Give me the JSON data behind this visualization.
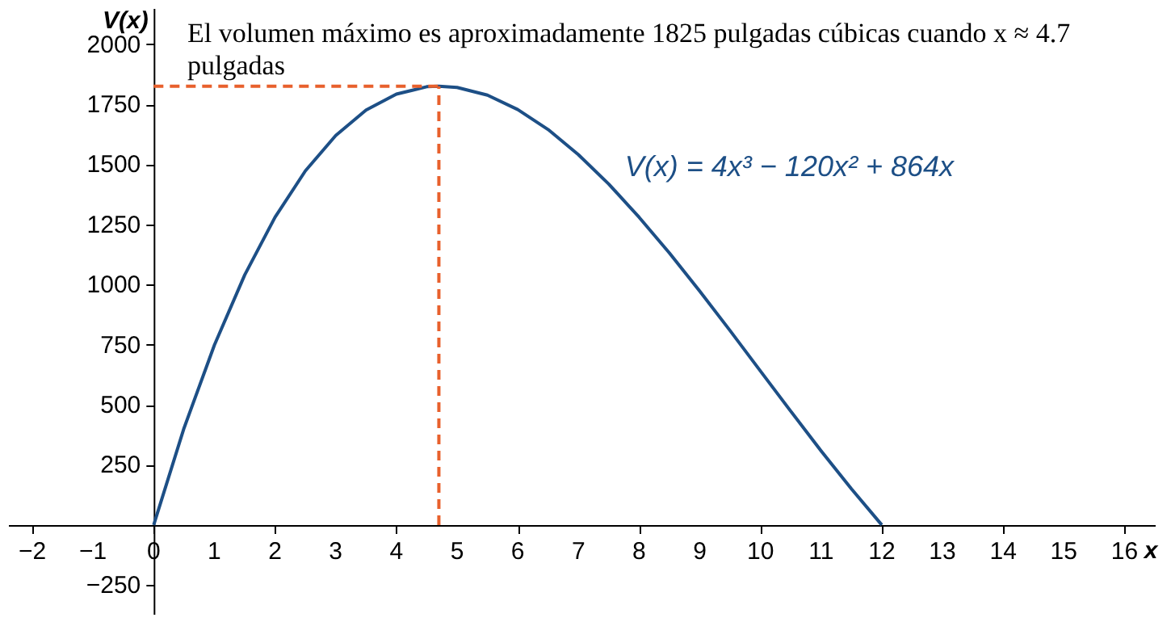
{
  "chart_data": {
    "type": "line",
    "xlabel": "x",
    "ylabel": "V(x)",
    "annotations": [
      "El volumen máximo es aproximadamente 1825 pulgadas cúbicas cuando x ≈ 4.7 pulgadas"
    ],
    "series": [
      {
        "name": "V(x) = 4x³ − 120x² + 864x",
        "color": "#1d4f86",
        "x": [
          0,
          0.5,
          1,
          1.5,
          2,
          2.5,
          3,
          3.5,
          4,
          4.5,
          4.7,
          5,
          5.5,
          6,
          6.5,
          7,
          7.5,
          8,
          8.5,
          9,
          9.5,
          10,
          10.5,
          11,
          11.5,
          12
        ],
        "values": [
          0,
          403,
          748,
          1040,
          1280,
          1473,
          1620,
          1726,
          1792,
          1823,
          1825,
          1820,
          1788,
          1728,
          1645,
          1540,
          1418,
          1280,
          1131,
          972,
          808,
          640,
          473,
          308,
          150,
          0
        ]
      }
    ],
    "xlim": [
      -2.4,
      16.5
    ],
    "ylim": [
      -370,
      2150
    ],
    "xticks": [
      {
        "value": -2,
        "label": "−2"
      },
      {
        "value": -1,
        "label": "−1"
      },
      0,
      1,
      2,
      3,
      4,
      5,
      6,
      7,
      8,
      9,
      10,
      11,
      12,
      13,
      14,
      15,
      16
    ],
    "yticks": [
      {
        "value": -250,
        "label": "−250"
      },
      250,
      500,
      750,
      1000,
      1250,
      1500,
      1750,
      2000
    ],
    "ref_lines": [
      {
        "axis": "y",
        "value": 1825,
        "color": "#e8602c",
        "line_style": "dashed"
      },
      {
        "axis": "x",
        "value": 4.7,
        "color": "#e8602c",
        "line_style": "dashed"
      }
    ],
    "grid": false,
    "marker": "none",
    "line_style": "solid"
  }
}
